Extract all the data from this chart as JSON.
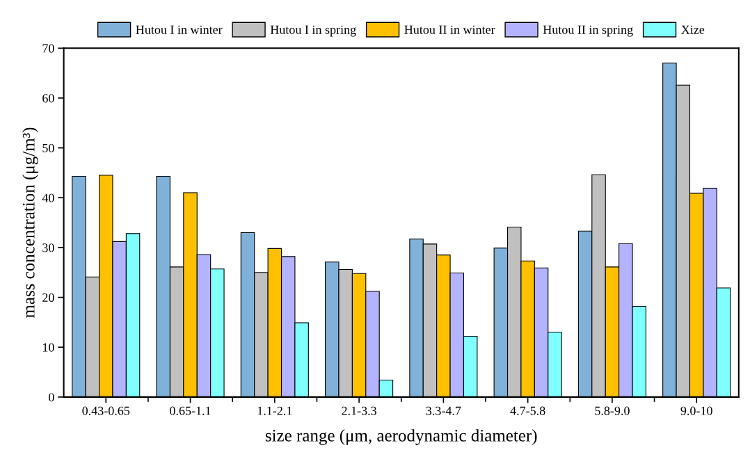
{
  "chart_data": {
    "type": "bar",
    "xlabel": "size range (μm, aerodynamic diameter)",
    "ylabel": "mass concentration (μg/m³)",
    "categories": [
      "0.43-0.65",
      "0.65-1.1",
      "1.1-2.1",
      "2.1-3.3",
      "3.3-4.7",
      "4.7-5.8",
      "5.8-9.0",
      "9.0-10"
    ],
    "series": [
      {
        "name": "Hutou I in winter",
        "color": "#80b1d9",
        "values": [
          44.3,
          44.3,
          33.0,
          27.1,
          31.7,
          29.9,
          33.3,
          67
        ]
      },
      {
        "name": "Hutou I in spring",
        "color": "#c0c0c0",
        "values": [
          24.1,
          26.1,
          25.0,
          25.6,
          30.7,
          34.1,
          44.6,
          62.6
        ]
      },
      {
        "name": "Hutou II in winter",
        "color": "#ffc000",
        "values": [
          44.5,
          41.0,
          29.8,
          24.8,
          28.5,
          27.3,
          26.1,
          40.9
        ]
      },
      {
        "name": "Hutou II in spring",
        "color": "#b3b3ff",
        "values": [
          31.2,
          28.6,
          28.2,
          21.2,
          24.9,
          25.9,
          30.8,
          41.9
        ]
      },
      {
        "name": "Xize",
        "color": "#80ffff",
        "values": [
          32.8,
          25.7,
          14.9,
          3.4,
          12.2,
          13.0,
          18.2,
          21.9
        ]
      }
    ],
    "ylim": [
      0,
      70
    ],
    "yticks": [
      0,
      10,
      20,
      30,
      40,
      50,
      60,
      70
    ],
    "grid": false,
    "legend": "top"
  }
}
